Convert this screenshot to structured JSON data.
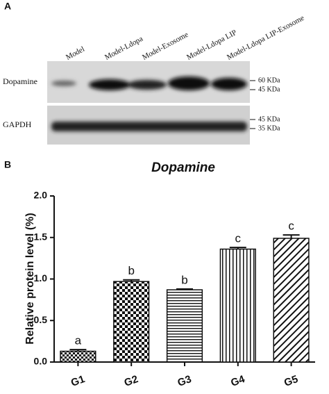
{
  "panel_a": {
    "label": "A",
    "lanes": [
      "Model",
      "Model-Ldopa",
      "Model-Exosome",
      "Model-Ldopa LIP",
      "Model-Ldopa LIP-Exosome"
    ],
    "rows": [
      {
        "name": "Dopamine",
        "markers": [
          "60 KDa",
          "45 KDa"
        ]
      },
      {
        "name": "GAPDH",
        "markers": [
          "45 KDa",
          "35 KDa"
        ]
      }
    ]
  },
  "chart_data": {
    "type": "bar",
    "panel_label": "B",
    "title": "Dopamine",
    "y_label": "Relative protein level (%)",
    "categories": [
      "G1",
      "G2",
      "G3",
      "G4",
      "G5"
    ],
    "values": [
      0.13,
      0.97,
      0.87,
      1.36,
      1.49
    ],
    "errors": [
      0.02,
      0.02,
      0.01,
      0.02,
      0.04
    ],
    "annotations": [
      "a",
      "b",
      "b",
      "c",
      "c"
    ],
    "patterns": [
      "checker-small",
      "checker",
      "horizontal",
      "vertical",
      "diagonal"
    ],
    "ylim": [
      0,
      2
    ],
    "yticks": [
      {
        "value": 0,
        "label": "0.0"
      },
      {
        "value": 0.5,
        "label": "0.5"
      },
      {
        "value": 1,
        "label": "1.0"
      },
      {
        "value": 1.5,
        "label": "1.5"
      },
      {
        "value": 2,
        "label": "2.0"
      }
    ]
  }
}
